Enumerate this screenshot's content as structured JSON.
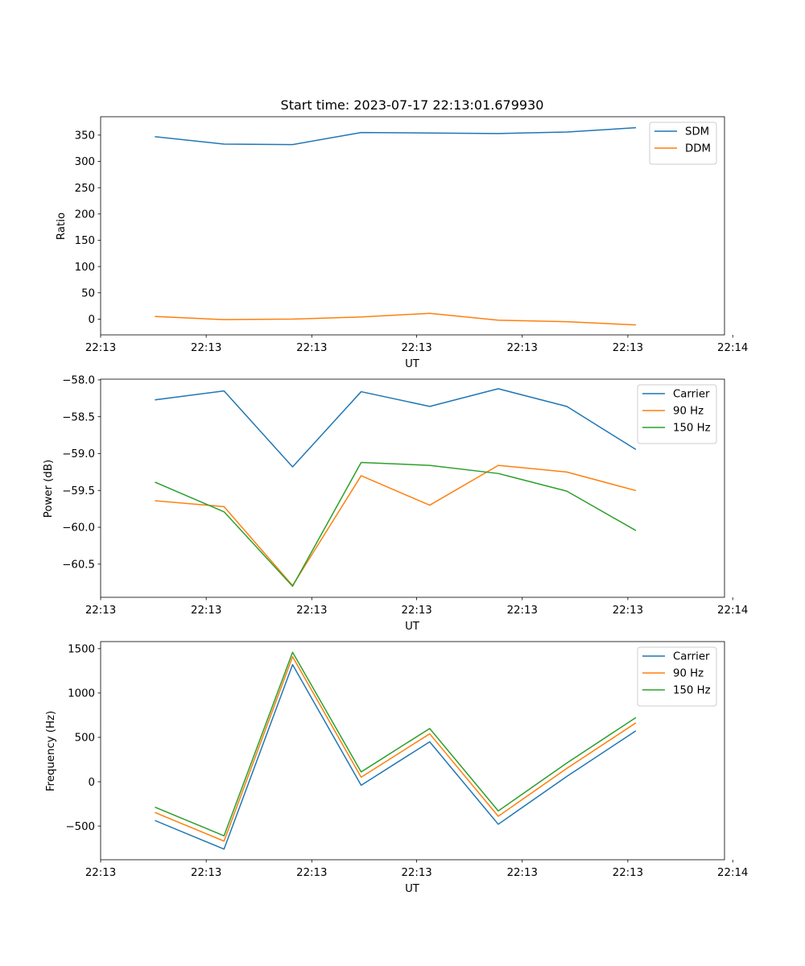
{
  "figure": {
    "title": "Start time: 2023-07-17 22:13:01.679930"
  },
  "chart_data": [
    {
      "type": "line",
      "title": "Start time: 2023-07-17 22:13:01.679930",
      "xlabel": "UT",
      "ylabel": "Ratio",
      "x": [
        1,
        2,
        3,
        4,
        5,
        6,
        7,
        8
      ],
      "xlim": [
        0.2,
        9.3
      ],
      "xticks": [
        0.2,
        1.74,
        3.28,
        4.81,
        6.35,
        7.89,
        9.42
      ],
      "xtick_labels": [
        "22:13",
        "22:13",
        "22:13",
        "22:13",
        "22:13",
        "22:13",
        "22:14"
      ],
      "ylim": [
        -30,
        385
      ],
      "yticks": [
        0,
        50,
        100,
        150,
        200,
        250,
        300,
        350
      ],
      "ytick_labels": [
        "0",
        "50",
        "100",
        "150",
        "200",
        "250",
        "300",
        "350"
      ],
      "legend": "top-right",
      "series": [
        {
          "name": "SDM",
          "color": "#1f77b4",
          "values": [
            347,
            333,
            332,
            355,
            354,
            353,
            356,
            364
          ]
        },
        {
          "name": "DDM",
          "color": "#ff7f0e",
          "values": [
            5,
            -1,
            0,
            4,
            11,
            -2,
            -5,
            -11
          ]
        }
      ]
    },
    {
      "type": "line",
      "xlabel": "UT",
      "ylabel": "Power (dB)",
      "x": [
        1,
        2,
        3,
        4,
        5,
        6,
        7,
        8
      ],
      "xlim": [
        0.2,
        9.3
      ],
      "xticks": [
        0.2,
        1.74,
        3.28,
        4.81,
        6.35,
        7.89,
        9.42
      ],
      "xtick_labels": [
        "22:13",
        "22:13",
        "22:13",
        "22:13",
        "22:13",
        "22:13",
        "22:14"
      ],
      "ylim": [
        -60.95,
        -57.99
      ],
      "yticks": [
        -58.0,
        -58.5,
        -59.0,
        -59.5,
        -60.0,
        -60.5
      ],
      "ytick_labels": [
        "−58.0",
        "−58.5",
        "−59.0",
        "−59.5",
        "−60.0",
        "−60.5"
      ],
      "legend": "top-right",
      "series": [
        {
          "name": "Carrier",
          "color": "#1f77b4",
          "values": [
            -58.27,
            -58.15,
            -59.18,
            -58.16,
            -58.36,
            -58.12,
            -58.36,
            -58.94
          ]
        },
        {
          "name": "90 Hz",
          "color": "#ff7f0e",
          "values": [
            -59.64,
            -59.72,
            -60.79,
            -59.3,
            -59.7,
            -59.16,
            -59.25,
            -59.5
          ]
        },
        {
          "name": "150 Hz",
          "color": "#2ca02c",
          "values": [
            -59.39,
            -59.79,
            -60.8,
            -59.12,
            -59.16,
            -59.27,
            -59.51,
            -60.04
          ]
        }
      ]
    },
    {
      "type": "line",
      "xlabel": "UT",
      "ylabel": "Frequency (Hz)",
      "x": [
        1,
        2,
        3,
        4,
        5,
        6,
        7,
        8
      ],
      "xlim": [
        0.2,
        9.3
      ],
      "xticks": [
        0.2,
        1.74,
        3.28,
        4.81,
        6.35,
        7.89,
        9.42
      ],
      "xtick_labels": [
        "22:13",
        "22:13",
        "22:13",
        "22:13",
        "22:13",
        "22:13",
        "22:14"
      ],
      "ylim": [
        -880,
        1580
      ],
      "yticks": [
        -500,
        0,
        500,
        1000,
        1500
      ],
      "ytick_labels": [
        "−500",
        "0",
        "500",
        "1000",
        "1500"
      ],
      "legend": "top-right",
      "series": [
        {
          "name": "Carrier",
          "color": "#1f77b4",
          "values": [
            -440,
            -760,
            1320,
            -40,
            450,
            -480,
            60,
            570
          ]
        },
        {
          "name": "90 Hz",
          "color": "#ff7f0e",
          "values": [
            -350,
            -670,
            1410,
            50,
            540,
            -390,
            150,
            660
          ]
        },
        {
          "name": "150 Hz",
          "color": "#2ca02c",
          "values": [
            -290,
            -610,
            1460,
            110,
            600,
            -330,
            210,
            720
          ]
        }
      ]
    }
  ]
}
